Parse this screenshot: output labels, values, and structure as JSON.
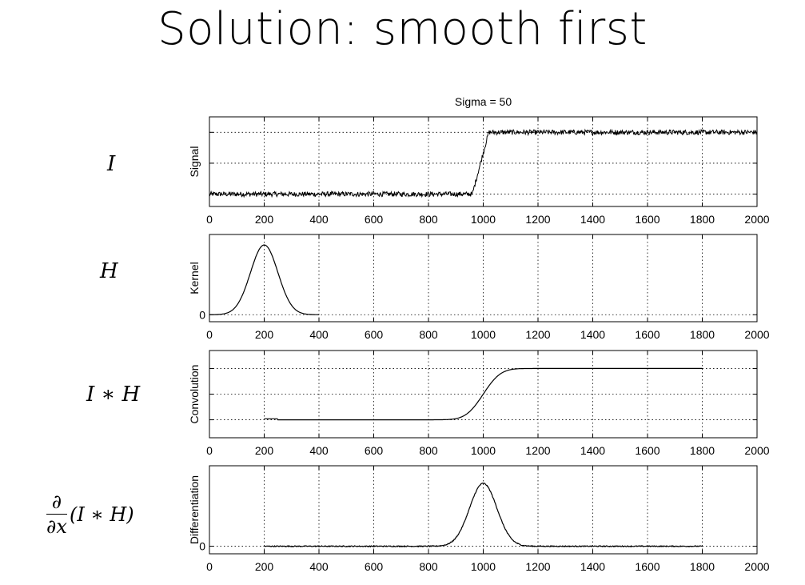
{
  "slide": {
    "title": "Solution: smooth first"
  },
  "row_labels": {
    "signal": "I",
    "kernel": "H",
    "convolution": "I ∗ H",
    "derivative_num": "∂",
    "derivative_den": "∂x",
    "derivative_arg": "(I ∗ H)"
  },
  "chart_data": [
    {
      "type": "line",
      "title": "Sigma = 50",
      "xlabel": "",
      "ylabel": "Signal",
      "xlim": [
        0,
        2000
      ],
      "xticks": [
        0,
        200,
        400,
        600,
        800,
        1000,
        1200,
        1400,
        1600,
        1800,
        2000
      ],
      "yticks": [],
      "grid": true,
      "series": [
        {
          "x": [
            0,
            960,
            1020,
            2000
          ],
          "y": [
            0,
            0,
            1,
            1
          ],
          "noise": true
        }
      ]
    },
    {
      "type": "line",
      "title": "",
      "xlabel": "",
      "ylabel": "Kernel",
      "xlim": [
        0,
        2000
      ],
      "xticks": [
        0,
        200,
        400,
        600,
        800,
        1000,
        1200,
        1400,
        1600,
        1800,
        2000
      ],
      "yticks": [
        0
      ],
      "grid": true,
      "series": [
        {
          "gaussian": {
            "mean": 200,
            "sigma": 50,
            "from": 0,
            "to": 400,
            "peak": 1
          }
        }
      ]
    },
    {
      "type": "line",
      "title": "",
      "xlabel": "",
      "ylabel": "Convolution",
      "xlim": [
        0,
        2000
      ],
      "xticks": [
        0,
        200,
        400,
        600,
        800,
        1000,
        1200,
        1400,
        1600,
        1800,
        2000
      ],
      "yticks": [],
      "grid": true,
      "series": [
        {
          "sigmoid": {
            "center": 1000,
            "sigma": 50,
            "from": 200,
            "to": 1800
          }
        }
      ]
    },
    {
      "type": "line",
      "title": "",
      "xlabel": "",
      "ylabel": "Differentiation",
      "xlim": [
        0,
        2000
      ],
      "xticks": [
        0,
        200,
        400,
        600,
        800,
        1000,
        1200,
        1400,
        1600,
        1800,
        2000
      ],
      "yticks": [
        0
      ],
      "grid": true,
      "series": [
        {
          "gaussian": {
            "mean": 1000,
            "sigma": 50,
            "from": 200,
            "to": 1800,
            "peak": 1
          }
        }
      ]
    }
  ]
}
